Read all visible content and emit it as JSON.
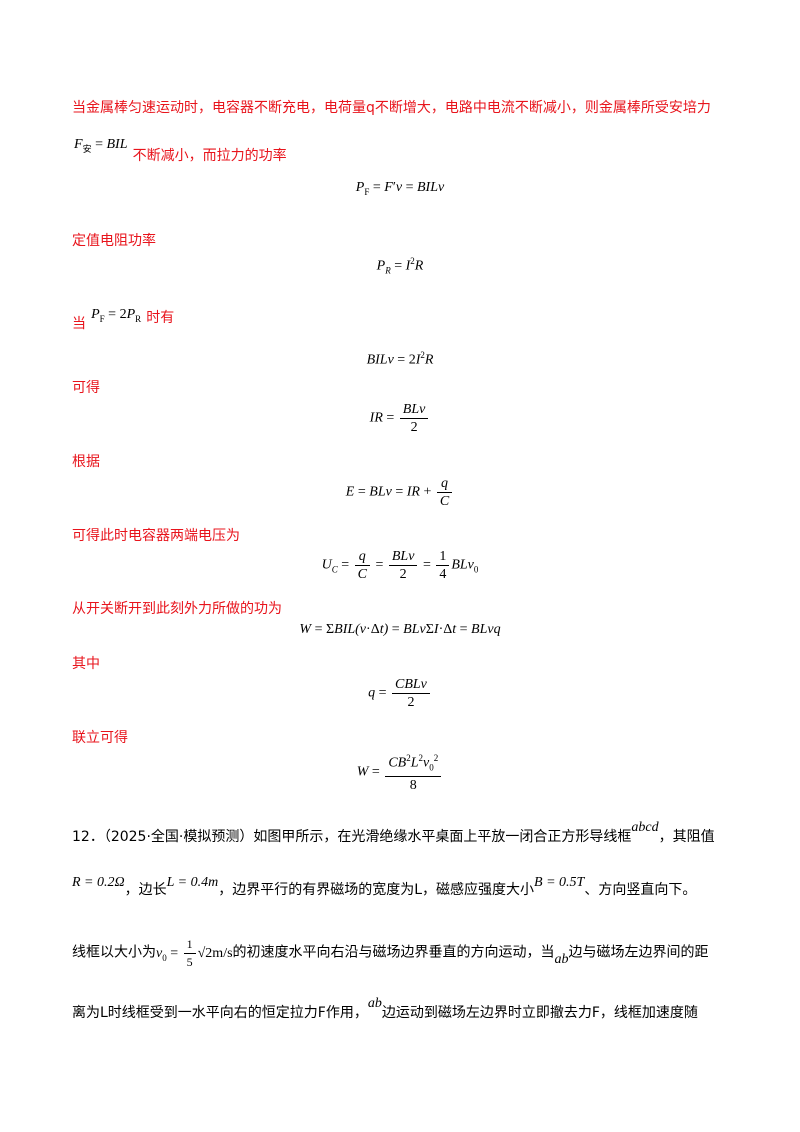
{
  "sol": {
    "l1": "当金属棒匀速运动时，电容器不断充电，电荷量q不断增大，电路中电流不断减小，则金属棒所受安培力",
    "l2_tail": "不断减小，而拉力的功率",
    "l3": "定值电阻功率",
    "l4_a": "当",
    "l4_b": "时有",
    "l5": "可得",
    "l6": "根据",
    "l7": "可得此时电容器两端电压为",
    "l8": "从开关断开到此刻外力所做的功为",
    "l9": "其中",
    "l10": "联立可得"
  },
  "problem": {
    "number": "12．",
    "source": "（2025·全国·模拟预测）",
    "text_a": "如图甲所示，在光滑绝缘水平桌面上平放一闭合正方形导线框",
    "frame_name": "abcd",
    "text_b": "，其阻值",
    "R_eq": "R = 0.2Ω",
    "side_label": "，边长",
    "L_eq": "L = 0.4m",
    "text_c": "，边界平行的有界磁场的宽度为L，磁感应强度大小",
    "B_eq": "B = 0.5T",
    "text_d": "、方向竖直向下。",
    "text_e": "线框以大小为",
    "text_f": "的初速度水平向右沿与磁场边界垂直的方向运动，当",
    "ab": "ab",
    "text_g": "边与磁场左边界间的距",
    "text_h": "离为L时线框受到一水平向右的恒定拉力F作用，",
    "text_i": "边运动到磁场左边界时立即撤去力F，线框加速度随"
  }
}
